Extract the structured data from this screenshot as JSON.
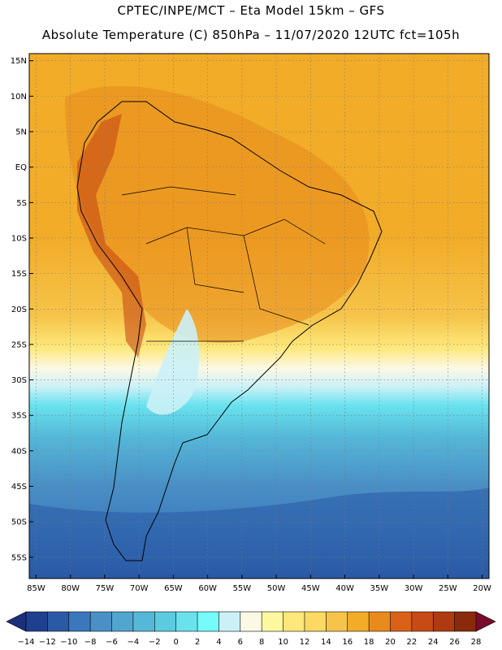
{
  "header": {
    "line1": "CPTEC/INPE/MCT –  Eta Model 15km – GFS",
    "line2": "Absolute Temperature (C) 850hPa – 11/07/2020 12UTC fct=105h"
  },
  "map": {
    "lat_labels": [
      "15N",
      "10N",
      "5N",
      "EQ",
      "5S",
      "10S",
      "15S",
      "20S",
      "25S",
      "30S",
      "35S",
      "40S",
      "45S",
      "50S",
      "55S"
    ],
    "lon_labels": [
      "85W",
      "80W",
      "75W",
      "70W",
      "65W",
      "60W",
      "55W",
      "50W",
      "45W",
      "40W",
      "35W",
      "30W",
      "25W",
      "20W"
    ],
    "extent": {
      "lon_min": -86,
      "lon_max": -19,
      "lat_min": -58,
      "lat_max": 16
    }
  },
  "colorbar": {
    "labels": [
      "-14",
      "-12",
      "-10",
      "-8",
      "-6",
      "-4",
      "-2",
      "0",
      "2",
      "4",
      "6",
      "8",
      "10",
      "12",
      "14",
      "16",
      "18",
      "20",
      "22",
      "24",
      "26",
      "28"
    ],
    "colors": [
      "#1f3f8f",
      "#2a5aa6",
      "#3a78bb",
      "#4a90c6",
      "#50a6cf",
      "#55b8d8",
      "#5ccbe0",
      "#69e2ee",
      "#76fbfb",
      "#cbf1f7",
      "#fbf8e6",
      "#fff8a0",
      "#fee87a",
      "#fbd962",
      "#f6c44a",
      "#f2ac28",
      "#e88a1c",
      "#d96218",
      "#c84a14",
      "#b03a10",
      "#8a2a0c"
    ],
    "low_color": "#1c2f7a",
    "high_color": "#7a0a2a"
  }
}
